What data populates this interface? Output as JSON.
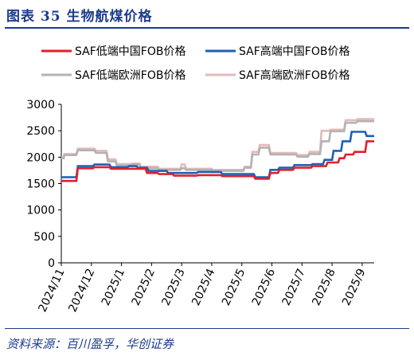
{
  "header": {
    "title": "图表 35   生物航煤价格"
  },
  "footer": {
    "source": "资料来源：百川盈孚，华创证券"
  },
  "chart_data": {
    "type": "line",
    "title": "",
    "xlabel": "",
    "ylabel": "",
    "ylim": [
      0,
      3000
    ],
    "yticks": [
      0,
      500,
      1000,
      1500,
      2000,
      2500,
      3000
    ],
    "x_tick_labels": [
      "2024/11",
      "2024/12",
      "2025/1",
      "2025/2",
      "2025/3",
      "2025/4",
      "2025/5",
      "2025/6",
      "2025/7",
      "2025/8",
      "2025/9"
    ],
    "x_range": [
      "2024/11",
      "2025/9 (end)"
    ],
    "grid": false,
    "legend_position": "top",
    "series": [
      {
        "name": "SAF低端中国FOB价格",
        "color": "#e0202a",
        "points": [
          [
            0,
            1550
          ],
          [
            0.5,
            1550
          ],
          [
            0.55,
            1790
          ],
          [
            1.05,
            1790
          ],
          [
            1.1,
            1810
          ],
          [
            1.6,
            1810
          ],
          [
            1.65,
            1780
          ],
          [
            2.8,
            1780
          ],
          [
            2.85,
            1700
          ],
          [
            3.2,
            1700
          ],
          [
            3.25,
            1680
          ],
          [
            3.7,
            1680
          ],
          [
            3.75,
            1650
          ],
          [
            4.5,
            1650
          ],
          [
            4.55,
            1660
          ],
          [
            5.3,
            1660
          ],
          [
            5.35,
            1640
          ],
          [
            6.4,
            1640
          ],
          [
            6.45,
            1590
          ],
          [
            6.9,
            1590
          ],
          [
            6.95,
            1700
          ],
          [
            7.2,
            1700
          ],
          [
            7.25,
            1760
          ],
          [
            7.7,
            1760
          ],
          [
            7.75,
            1800
          ],
          [
            8.3,
            1800
          ],
          [
            8.35,
            1830
          ],
          [
            8.8,
            1830
          ],
          [
            8.85,
            1900
          ],
          [
            9.2,
            1900
          ],
          [
            9.25,
            1980
          ],
          [
            9.4,
            1980
          ],
          [
            9.45,
            2050
          ],
          [
            9.7,
            2050
          ],
          [
            9.75,
            2100
          ],
          [
            10.1,
            2100
          ],
          [
            10.15,
            2300
          ],
          [
            10.4,
            2300
          ]
        ]
      },
      {
        "name": "SAF高端中国FOB价格",
        "color": "#1f5fb4",
        "points": [
          [
            0,
            1620
          ],
          [
            0.5,
            1620
          ],
          [
            0.55,
            1830
          ],
          [
            1.05,
            1830
          ],
          [
            1.1,
            1860
          ],
          [
            1.6,
            1860
          ],
          [
            1.65,
            1810
          ],
          [
            2.2,
            1810
          ],
          [
            2.25,
            1830
          ],
          [
            2.5,
            1830
          ],
          [
            2.55,
            1800
          ],
          [
            2.85,
            1800
          ],
          [
            2.9,
            1740
          ],
          [
            3.5,
            1740
          ],
          [
            3.55,
            1700
          ],
          [
            4.5,
            1700
          ],
          [
            4.55,
            1720
          ],
          [
            5.3,
            1720
          ],
          [
            5.35,
            1680
          ],
          [
            6.4,
            1680
          ],
          [
            6.45,
            1620
          ],
          [
            6.9,
            1620
          ],
          [
            6.95,
            1760
          ],
          [
            7.2,
            1760
          ],
          [
            7.25,
            1800
          ],
          [
            7.7,
            1800
          ],
          [
            7.75,
            1850
          ],
          [
            8.3,
            1850
          ],
          [
            8.35,
            1870
          ],
          [
            8.7,
            1870
          ],
          [
            8.75,
            1950
          ],
          [
            9.0,
            1950
          ],
          [
            9.05,
            2120
          ],
          [
            9.3,
            2120
          ],
          [
            9.35,
            2300
          ],
          [
            9.6,
            2300
          ],
          [
            9.65,
            2480
          ],
          [
            10.1,
            2480
          ],
          [
            10.15,
            2400
          ],
          [
            10.4,
            2400
          ]
        ]
      },
      {
        "name": "SAF低端欧洲FOB价格",
        "color": "#b3b3b3",
        "points": [
          [
            0,
            1980
          ],
          [
            0.08,
            1980
          ],
          [
            0.1,
            2040
          ],
          [
            0.5,
            2040
          ],
          [
            0.55,
            2130
          ],
          [
            1.1,
            2130
          ],
          [
            1.15,
            2080
          ],
          [
            1.5,
            2080
          ],
          [
            1.55,
            1920
          ],
          [
            1.8,
            1920
          ],
          [
            1.85,
            1840
          ],
          [
            2.3,
            1840
          ],
          [
            2.35,
            1860
          ],
          [
            2.6,
            1860
          ],
          [
            2.65,
            1790
          ],
          [
            3.2,
            1790
          ],
          [
            3.25,
            1760
          ],
          [
            3.95,
            1760
          ],
          [
            4.0,
            1790
          ],
          [
            4.1,
            1790
          ],
          [
            4.15,
            1760
          ],
          [
            5.0,
            1760
          ],
          [
            5.05,
            1740
          ],
          [
            6.05,
            1740
          ],
          [
            6.1,
            1800
          ],
          [
            6.3,
            1800
          ],
          [
            6.35,
            2050
          ],
          [
            6.55,
            2050
          ],
          [
            6.6,
            2180
          ],
          [
            6.9,
            2180
          ],
          [
            6.95,
            2050
          ],
          [
            7.8,
            2050
          ],
          [
            7.85,
            2010
          ],
          [
            8.2,
            2010
          ],
          [
            8.25,
            2060
          ],
          [
            8.6,
            2060
          ],
          [
            8.65,
            2300
          ],
          [
            8.9,
            2300
          ],
          [
            8.95,
            2490
          ],
          [
            9.4,
            2490
          ],
          [
            9.45,
            2650
          ],
          [
            9.8,
            2650
          ],
          [
            9.85,
            2680
          ],
          [
            10.4,
            2680
          ]
        ]
      },
      {
        "name": "SAF高端欧洲FOB价格",
        "color": "#e3b9b9",
        "points": [
          [
            0,
            2000
          ],
          [
            0.08,
            2000
          ],
          [
            0.1,
            2060
          ],
          [
            0.5,
            2060
          ],
          [
            0.55,
            2160
          ],
          [
            1.1,
            2160
          ],
          [
            1.15,
            2120
          ],
          [
            1.5,
            2120
          ],
          [
            1.55,
            1960
          ],
          [
            1.8,
            1960
          ],
          [
            1.85,
            1870
          ],
          [
            2.3,
            1870
          ],
          [
            2.35,
            1880
          ],
          [
            2.6,
            1880
          ],
          [
            2.65,
            1820
          ],
          [
            3.2,
            1820
          ],
          [
            3.25,
            1780
          ],
          [
            3.95,
            1780
          ],
          [
            4.0,
            1860
          ],
          [
            4.1,
            1860
          ],
          [
            4.15,
            1780
          ],
          [
            5.0,
            1780
          ],
          [
            5.05,
            1760
          ],
          [
            6.05,
            1760
          ],
          [
            6.1,
            1820
          ],
          [
            6.3,
            1820
          ],
          [
            6.35,
            2100
          ],
          [
            6.55,
            2100
          ],
          [
            6.6,
            2230
          ],
          [
            6.9,
            2230
          ],
          [
            6.95,
            2080
          ],
          [
            7.8,
            2080
          ],
          [
            7.85,
            2040
          ],
          [
            8.2,
            2040
          ],
          [
            8.25,
            2100
          ],
          [
            8.6,
            2100
          ],
          [
            8.65,
            2500
          ],
          [
            8.9,
            2500
          ],
          [
            8.95,
            2520
          ],
          [
            9.4,
            2520
          ],
          [
            9.45,
            2700
          ],
          [
            9.8,
            2700
          ],
          [
            9.85,
            2720
          ],
          [
            10.4,
            2720
          ]
        ]
      }
    ],
    "draw_order": [
      3,
      2,
      1,
      0
    ],
    "legend_rows": [
      [
        0,
        1
      ],
      [
        2,
        3
      ]
    ]
  }
}
